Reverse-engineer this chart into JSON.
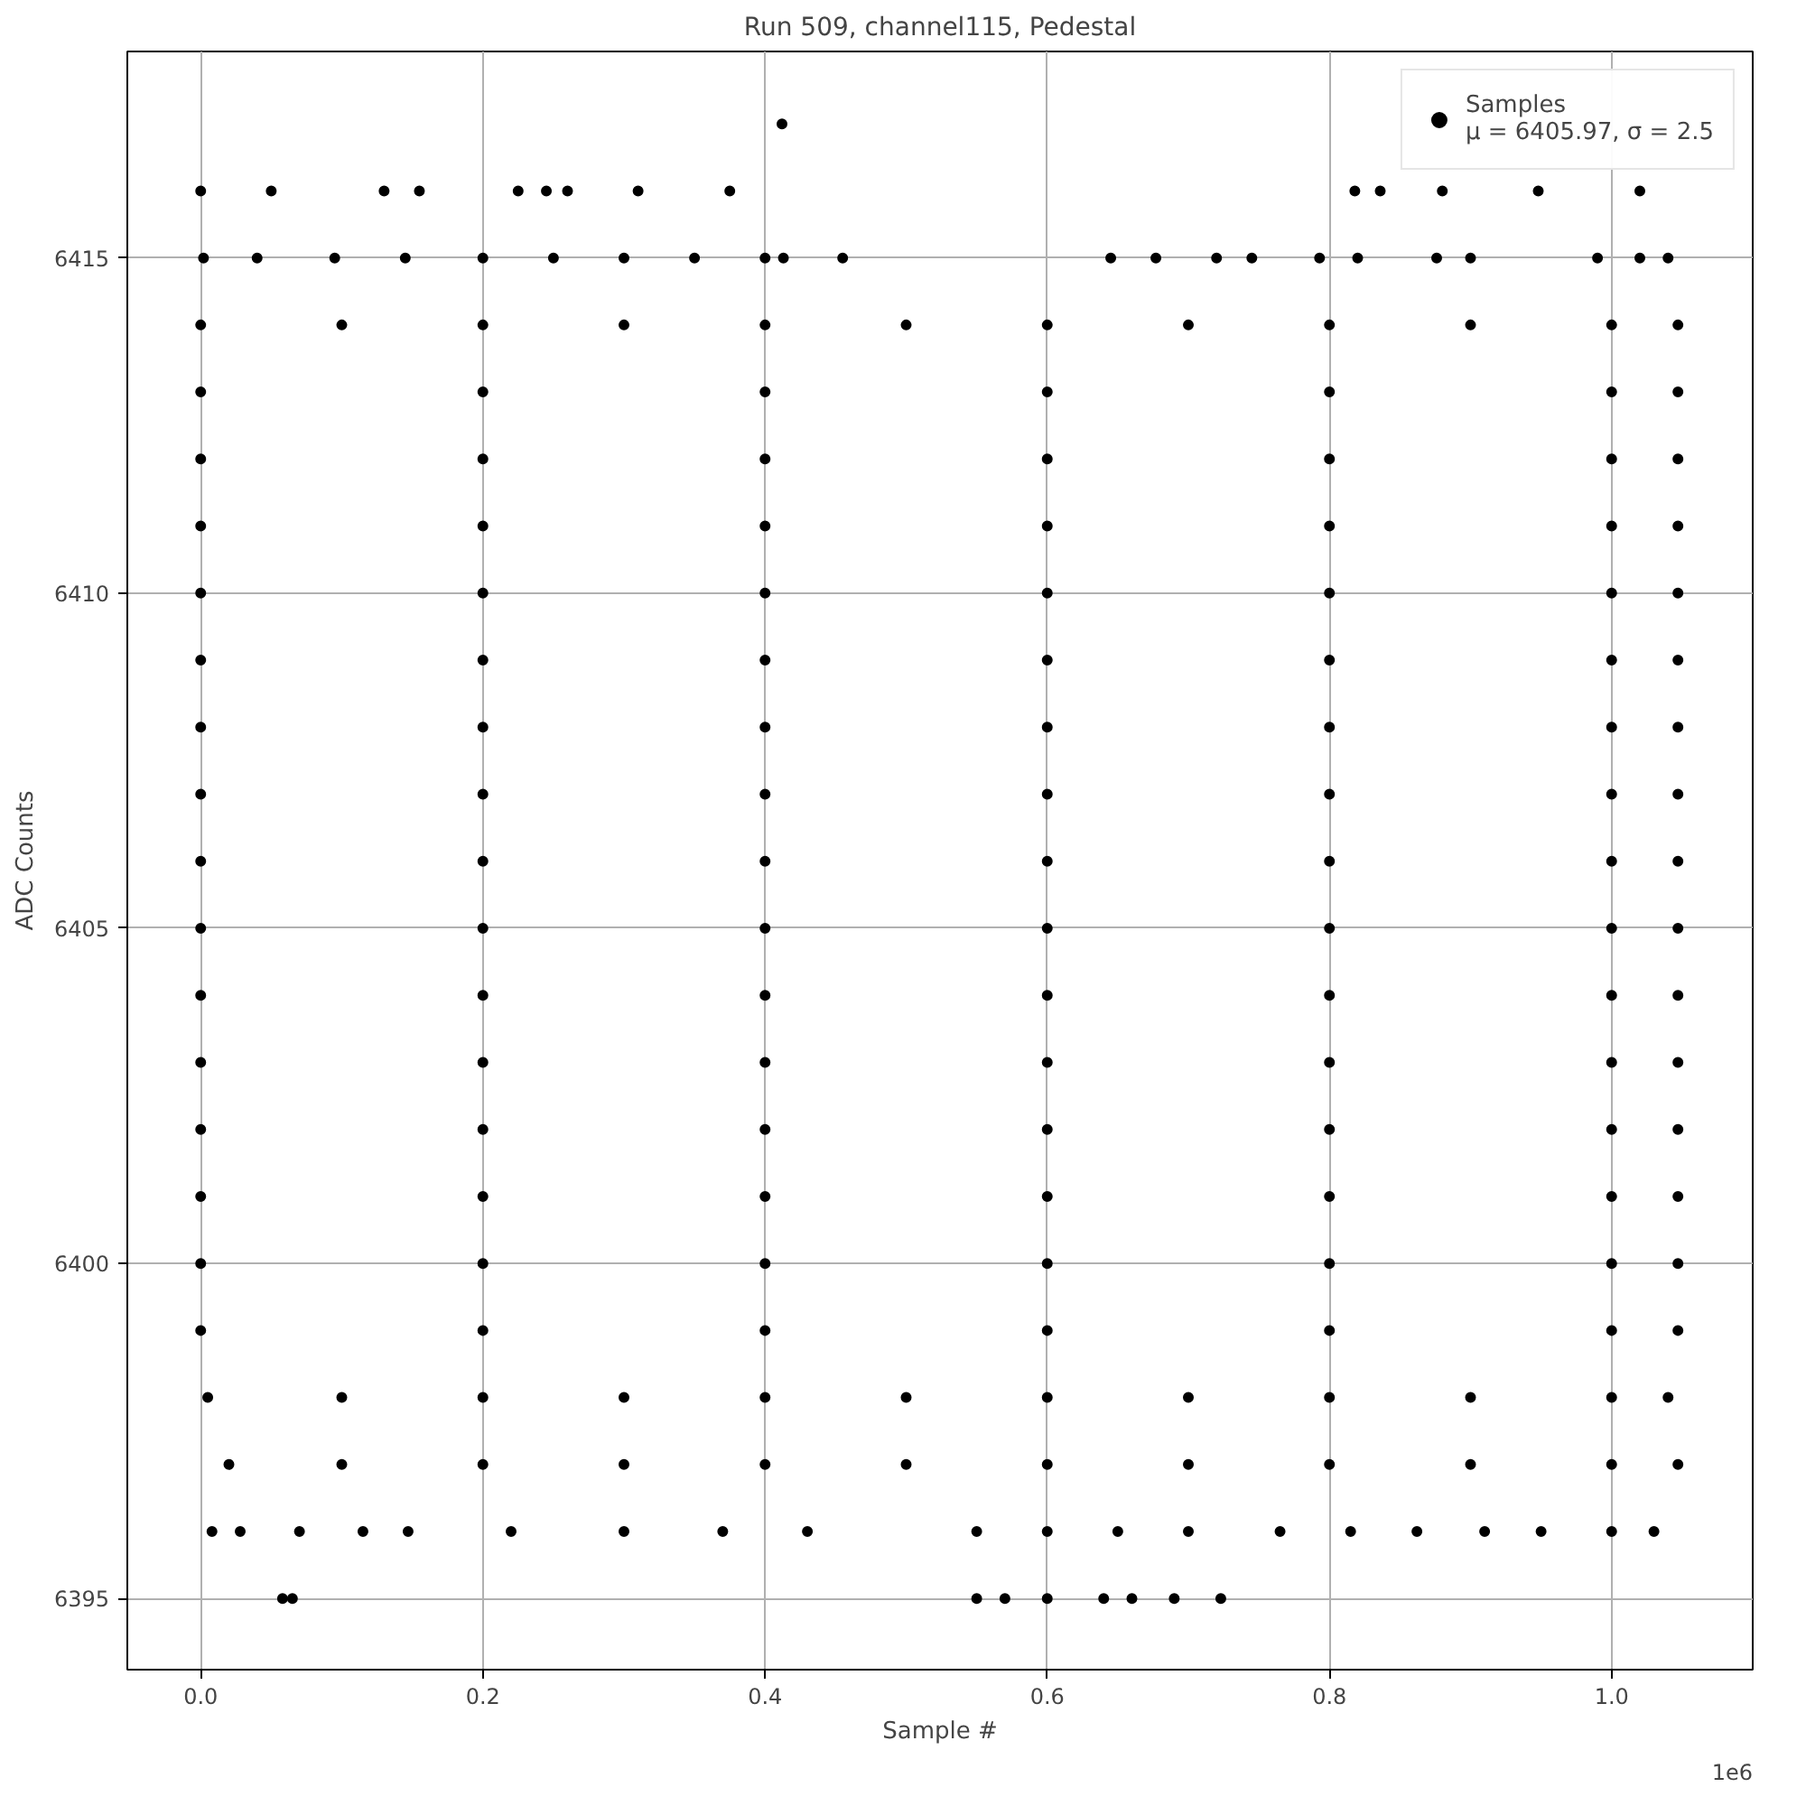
{
  "chart_data": {
    "type": "scatter",
    "title": "Run 509, channel115, Pedestal",
    "xlabel": "Sample #",
    "ylabel": "ADC Counts",
    "annotations": [
      "1e6"
    ],
    "xlim": [
      -0.052,
      1.1
    ],
    "ylim": [
      6393.94,
      6418.08
    ],
    "xticks": [
      {
        "value": 0,
        "label": "0.0"
      },
      0.2,
      0.4,
      0.6,
      0.8,
      {
        "value": 1,
        "label": "1.0"
      }
    ],
    "yticks": [
      6395,
      6400,
      6405,
      6410,
      6415
    ],
    "grid": true,
    "legend": "top right",
    "marker": "circle",
    "series": [
      {
        "name": "Samples\nμ = 6405.97, σ = 2.5",
        "color": "#000000",
        "x": [
          0.412,
          0.0,
          0.05,
          0.13,
          0.155,
          0.225,
          0.245,
          0.26,
          0.31,
          0.375,
          0.818,
          0.836,
          0.88,
          0.948,
          1.02,
          0.002,
          0.04,
          0.095,
          0.145,
          0.2,
          0.25,
          0.3,
          0.35,
          0.4,
          0.413,
          0.455,
          0.645,
          0.677,
          0.72,
          0.745,
          0.793,
          0.82,
          0.876,
          0.9,
          0.99,
          1.02,
          1.04,
          0,
          0.1,
          0.2,
          0.3,
          0.4,
          0.5,
          0.6,
          0.7,
          0.8,
          0.9,
          1.0,
          1.047,
          0,
          0.2,
          0.4,
          0.6,
          0.8,
          1.0,
          1.047,
          0,
          0.2,
          0.4,
          0.6,
          0.8,
          1.0,
          1.047,
          0,
          0.2,
          0.4,
          0.6,
          0.8,
          1.0,
          1.047,
          0,
          0.2,
          0.4,
          0.6,
          0.8,
          1.0,
          1.047,
          0,
          0.2,
          0.4,
          0.6,
          0.8,
          1.0,
          1.047,
          0,
          0.2,
          0.4,
          0.6,
          0.8,
          1.0,
          1.047,
          0,
          0.2,
          0.4,
          0.6,
          0.8,
          1.0,
          1.047,
          0,
          0.2,
          0.4,
          0.6,
          0.8,
          1.0,
          1.047,
          0,
          0.2,
          0.4,
          0.6,
          0.8,
          1.0,
          1.047,
          0,
          0.2,
          0.4,
          0.6,
          0.8,
          1.0,
          1.047,
          0,
          0.2,
          0.4,
          0.6,
          0.8,
          1.0,
          1.047,
          0,
          0.2,
          0.4,
          0.6,
          0.8,
          1.0,
          1.047,
          0,
          0.2,
          0.4,
          0.6,
          0.8,
          1.0,
          1.047,
          0,
          0.2,
          0.4,
          0.6,
          0.8,
          1.0,
          1.047,
          0,
          0.2,
          0.4,
          0.6,
          0.8,
          1.0,
          1.047,
          0.005,
          0.1,
          0.2,
          0.3,
          0.4,
          0.5,
          0.6,
          0.7,
          0.8,
          0.9,
          1.0,
          1.04,
          0.02,
          0.1,
          0.2,
          0.3,
          0.4,
          0.5,
          0.6,
          0.7,
          0.8,
          0.9,
          1.0,
          1.047,
          0.008,
          0.028,
          0.07,
          0.115,
          0.147,
          0.22,
          0.3,
          0.37,
          0.43,
          0.55,
          0.6,
          0.65,
          0.7,
          0.765,
          0.815,
          0.862,
          0.91,
          0.95,
          1.0,
          1.03,
          0.058,
          0.065,
          0.55,
          0.57,
          0.6,
          0.64,
          0.66,
          0.69,
          0.723
        ],
        "values": [
          6417,
          6416,
          6416,
          6416,
          6416,
          6416,
          6416,
          6416,
          6416,
          6416,
          6416,
          6416,
          6416,
          6416,
          6416,
          6415,
          6415,
          6415,
          6415,
          6415,
          6415,
          6415,
          6415,
          6415,
          6415,
          6415,
          6415,
          6415,
          6415,
          6415,
          6415,
          6415,
          6415,
          6415,
          6415,
          6415,
          6415,
          6414,
          6414,
          6414,
          6414,
          6414,
          6414,
          6414,
          6414,
          6414,
          6414,
          6414,
          6414,
          6413,
          6413,
          6413,
          6413,
          6413,
          6413,
          6413,
          6412,
          6412,
          6412,
          6412,
          6412,
          6412,
          6412,
          6411,
          6411,
          6411,
          6411,
          6411,
          6411,
          6411,
          6410,
          6410,
          6410,
          6410,
          6410,
          6410,
          6410,
          6409,
          6409,
          6409,
          6409,
          6409,
          6409,
          6409,
          6408,
          6408,
          6408,
          6408,
          6408,
          6408,
          6408,
          6407,
          6407,
          6407,
          6407,
          6407,
          6407,
          6407,
          6406,
          6406,
          6406,
          6406,
          6406,
          6406,
          6406,
          6405,
          6405,
          6405,
          6405,
          6405,
          6405,
          6405,
          6404,
          6404,
          6404,
          6404,
          6404,
          6404,
          6404,
          6403,
          6403,
          6403,
          6403,
          6403,
          6403,
          6403,
          6402,
          6402,
          6402,
          6402,
          6402,
          6402,
          6402,
          6401,
          6401,
          6401,
          6401,
          6401,
          6401,
          6401,
          6400,
          6400,
          6400,
          6400,
          6400,
          6400,
          6400,
          6399,
          6399,
          6399,
          6399,
          6399,
          6399,
          6399,
          6398,
          6398,
          6398,
          6398,
          6398,
          6398,
          6398,
          6398,
          6398,
          6398,
          6398,
          6398,
          6397,
          6397,
          6397,
          6397,
          6397,
          6397,
          6397,
          6397,
          6397,
          6397,
          6397,
          6397,
          6396,
          6396,
          6396,
          6396,
          6396,
          6396,
          6396,
          6396,
          6396,
          6396,
          6396,
          6396,
          6396,
          6396,
          6396,
          6396,
          6396,
          6396,
          6396,
          6396,
          6395,
          6395,
          6395,
          6395,
          6395,
          6395,
          6395,
          6395,
          6395
        ]
      }
    ]
  }
}
